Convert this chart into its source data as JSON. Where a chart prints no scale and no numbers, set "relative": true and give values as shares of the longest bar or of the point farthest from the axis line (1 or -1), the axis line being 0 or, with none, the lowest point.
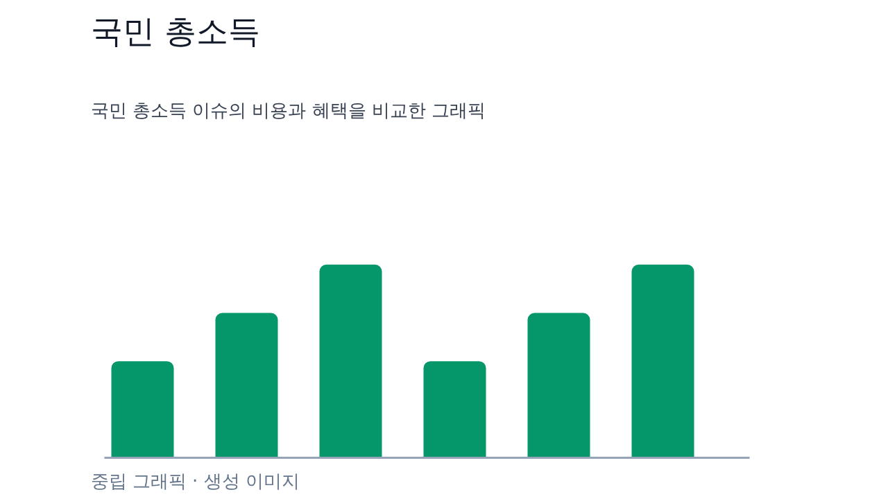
{
  "chart_data": {
    "type": "bar",
    "title": "국민 총소득",
    "subtitle": "국민 총소득 이슈의 비용과 혜택을 비교한 그래픽",
    "annotations": [
      "중립 그래픽 · 생성 이미지"
    ],
    "categories": [
      null,
      null,
      null,
      null,
      null,
      null
    ],
    "values": [
      0.5,
      0.75,
      1,
      0.5,
      0.75,
      1
    ],
    "color": "#059669",
    "relative": true
  }
}
